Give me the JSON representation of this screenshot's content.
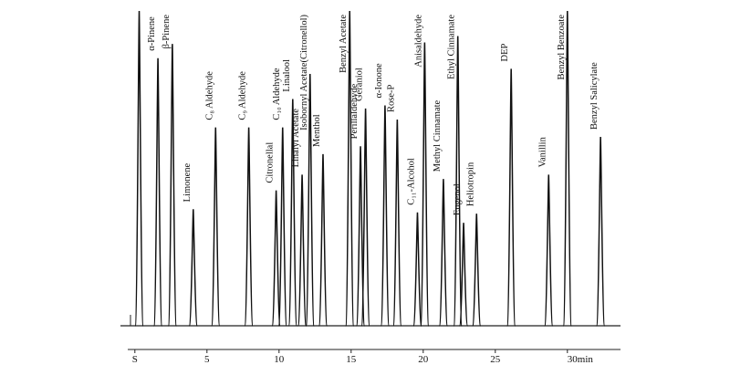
{
  "chart_data": {
    "type": "chromatogram",
    "categories": [
      null,
      "α-Pinene",
      "β-Pinene",
      "Limonene",
      "C₈ Aldehyde",
      "C₉ Aldehyde",
      "Citronellal",
      "C₁₀ Aldehyde",
      "Linalool",
      "Linalyl Acetate",
      "Isobornyl Acetate(Citronellol)",
      "Menthol",
      "Benzyl Acetate",
      "Perillaldehyde",
      "Geraniol",
      "α-Ionone",
      "Rose-P",
      "C₁₁-Alcohol",
      "Anisaldehyde",
      "Methyl Cinnamate",
      "Ethyl Cinnamate",
      "Eugenol",
      "Heliotropin",
      "DEP",
      "Vanillin",
      "Benzyl Benzoate",
      "Benzyl Salicylate"
    ],
    "x": [
      0.3,
      1.6,
      2.6,
      4.05,
      5.6,
      7.9,
      9.8,
      10.25,
      10.95,
      11.6,
      12.15,
      13.05,
      14.9,
      15.65,
      16.0,
      17.35,
      18.2,
      19.6,
      20.1,
      21.4,
      22.4,
      22.8,
      23.7,
      26.1,
      28.7,
      30.0,
      32.3
    ],
    "values": [
      100,
      85,
      89.5,
      37,
      63,
      63,
      43,
      63,
      72,
      48,
      80,
      54.5,
      100,
      57,
      69,
      70,
      65.5,
      36,
      90,
      46.6,
      92,
      32.7,
      35.6,
      81.6,
      48,
      100,
      60
    ],
    "color": "#111111",
    "xlim": [
      -1,
      34
    ],
    "xticks": [
      {
        "value": 0,
        "label": "S"
      },
      5,
      10,
      15,
      20,
      25,
      {
        "value": 30,
        "label": "30min"
      }
    ],
    "ylim": [
      0,
      100
    ]
  }
}
